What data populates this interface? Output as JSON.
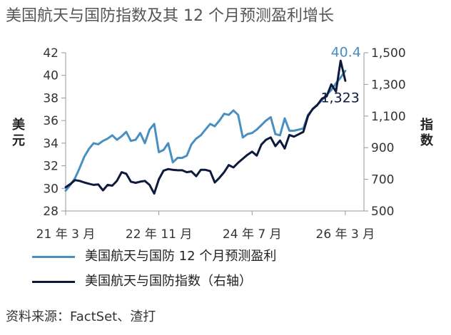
{
  "title": "美国航天与国防指数及其 12 个月预测盈利增长",
  "source": "资料来源：FactSet、渣打",
  "colors": {
    "earnings": "#4a8fc1",
    "index": "#0e1a3c",
    "axis": "#999999"
  },
  "chart_data": {
    "type": "line",
    "left_axis": {
      "label": "美元",
      "range": [
        28,
        42
      ],
      "ticks": [
        "28",
        "30",
        "32",
        "34",
        "36",
        "38",
        "40",
        "42"
      ]
    },
    "right_axis": {
      "label": "指数",
      "range": [
        500,
        1500
      ],
      "ticks": [
        "500",
        "700",
        "900",
        "1,100",
        "1,300",
        "1,500"
      ]
    },
    "x_ticks": [
      {
        "label": "21 年 3 月",
        "t": 0
      },
      {
        "label": "22 年 11 月",
        "t": 20
      },
      {
        "label": "24 年 7 月",
        "t": 40
      },
      {
        "label": "26 年 3 月",
        "t": 60
      }
    ],
    "series": [
      {
        "name": "美国航天与国防 12 个月预测盈利",
        "axis": "left",
        "annotation": "40.4",
        "points": [
          [
            0,
            29.8
          ],
          [
            1,
            30.3
          ],
          [
            2,
            30.9
          ],
          [
            3,
            31.8
          ],
          [
            4,
            32.8
          ],
          [
            5,
            33.5
          ],
          [
            6,
            34.0
          ],
          [
            7,
            33.9
          ],
          [
            8,
            34.2
          ],
          [
            9,
            34.4
          ],
          [
            10,
            34.7
          ],
          [
            11,
            34.3
          ],
          [
            12,
            34.6
          ],
          [
            13,
            35.0
          ],
          [
            14,
            34.2
          ],
          [
            15,
            34.3
          ],
          [
            16,
            34.9
          ],
          [
            17,
            34.0
          ],
          [
            18,
            35.2
          ],
          [
            19,
            35.7
          ],
          [
            20,
            33.2
          ],
          [
            21,
            33.4
          ],
          [
            22,
            34.0
          ],
          [
            23,
            32.3
          ],
          [
            24,
            32.7
          ],
          [
            25,
            32.7
          ],
          [
            26,
            32.9
          ],
          [
            27,
            33.9
          ],
          [
            28,
            34.4
          ],
          [
            29,
            34.7
          ],
          [
            30,
            35.2
          ],
          [
            31,
            35.7
          ],
          [
            32,
            35.5
          ],
          [
            33,
            36.0
          ],
          [
            34,
            36.6
          ],
          [
            35,
            36.5
          ],
          [
            36,
            36.9
          ],
          [
            37,
            36.5
          ],
          [
            38,
            34.5
          ],
          [
            39,
            34.8
          ],
          [
            40,
            34.9
          ],
          [
            41,
            35.2
          ],
          [
            42,
            35.6
          ],
          [
            43,
            36.0
          ],
          [
            44,
            36.3
          ],
          [
            45,
            34.8
          ],
          [
            46,
            34.7
          ],
          [
            47,
            36.2
          ],
          [
            48,
            35.1
          ],
          [
            49,
            35.1
          ],
          [
            50,
            35.2
          ],
          [
            51,
            35.3
          ],
          [
            52,
            36.5
          ],
          [
            53,
            37.0
          ],
          [
            54,
            37.4
          ],
          [
            55,
            37.8
          ],
          [
            56,
            38.3
          ],
          [
            57,
            38.7
          ],
          [
            58,
            39.3
          ],
          [
            59,
            39.8
          ],
          [
            60,
            40.4
          ]
        ]
      },
      {
        "name": "美国航天与国防指数（右轴）",
        "axis": "right",
        "annotation": "1,323",
        "points": [
          [
            0,
            650
          ],
          [
            1,
            670
          ],
          [
            2,
            695
          ],
          [
            3,
            690
          ],
          [
            4,
            680
          ],
          [
            5,
            672
          ],
          [
            6,
            665
          ],
          [
            7,
            668
          ],
          [
            8,
            630
          ],
          [
            9,
            665
          ],
          [
            10,
            660
          ],
          [
            11,
            690
          ],
          [
            12,
            745
          ],
          [
            13,
            735
          ],
          [
            14,
            685
          ],
          [
            15,
            678
          ],
          [
            16,
            685
          ],
          [
            17,
            690
          ],
          [
            18,
            665
          ],
          [
            19,
            610
          ],
          [
            20,
            700
          ],
          [
            21,
            755
          ],
          [
            22,
            765
          ],
          [
            23,
            760
          ],
          [
            24,
            757
          ],
          [
            25,
            757
          ],
          [
            26,
            745
          ],
          [
            27,
            750
          ],
          [
            28,
            720
          ],
          [
            29,
            760
          ],
          [
            30,
            760
          ],
          [
            31,
            752
          ],
          [
            32,
            680
          ],
          [
            33,
            710
          ],
          [
            34,
            745
          ],
          [
            35,
            790
          ],
          [
            36,
            775
          ],
          [
            37,
            805
          ],
          [
            38,
            830
          ],
          [
            39,
            855
          ],
          [
            40,
            875
          ],
          [
            41,
            850
          ],
          [
            42,
            920
          ],
          [
            43,
            950
          ],
          [
            44,
            965
          ],
          [
            45,
            910
          ],
          [
            46,
            945
          ],
          [
            47,
            895
          ],
          [
            48,
            980
          ],
          [
            49,
            970
          ],
          [
            50,
            985
          ],
          [
            51,
            1000
          ],
          [
            52,
            1100
          ],
          [
            53,
            1145
          ],
          [
            54,
            1170
          ],
          [
            55,
            1210
          ],
          [
            56,
            1225
          ],
          [
            57,
            1300
          ],
          [
            58,
            1255
          ],
          [
            59,
            1450
          ],
          [
            60,
            1323
          ]
        ]
      }
    ]
  }
}
